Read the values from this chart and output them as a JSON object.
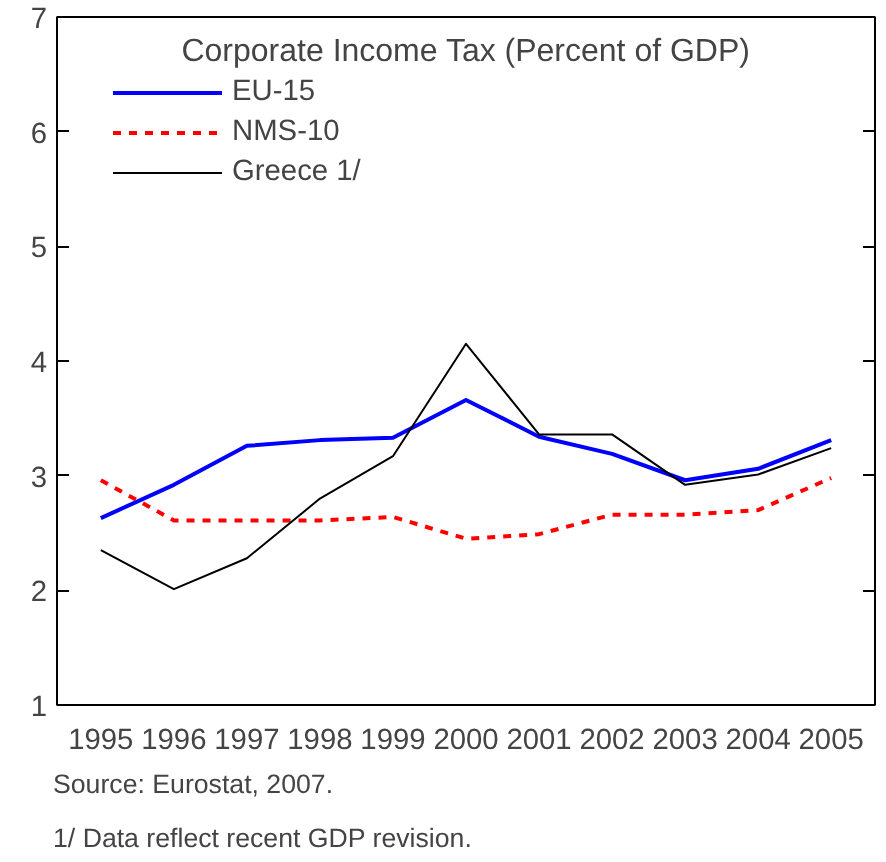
{
  "chart_data": {
    "type": "line",
    "title": "Corporate Income Tax (Percent of GDP)",
    "categories": [
      "1995",
      "1996",
      "1997",
      "1998",
      "1999",
      "2000",
      "2001",
      "2002",
      "2003",
      "2004",
      "2005"
    ],
    "series": [
      {
        "name": "EU-15",
        "color": "#0000ff",
        "line_style": "solid",
        "values": [
          2.63,
          2.92,
          3.26,
          3.31,
          3.33,
          3.66,
          3.34,
          3.19,
          2.96,
          3.06,
          3.31
        ]
      },
      {
        "name": "NMS-10",
        "color": "#ff0000",
        "line_style": "dashed",
        "values": [
          2.96,
          2.61,
          2.61,
          2.61,
          2.64,
          2.45,
          2.49,
          2.66,
          2.66,
          2.7,
          2.98
        ]
      },
      {
        "name": "Greece 1/",
        "color": "#000000",
        "line_style": "solid",
        "values": [
          2.35,
          2.01,
          2.28,
          2.8,
          3.17,
          4.15,
          3.36,
          3.36,
          2.92,
          3.01,
          3.24
        ]
      }
    ],
    "ylim": [
      1,
      7
    ],
    "yticks": [
      1,
      2,
      3,
      4,
      5,
      6,
      7
    ],
    "grid": false,
    "legend": "top left",
    "marker": "none",
    "annotations": [
      "Source: Eurostat, 2007.",
      "1/ Data reflect recent GDP revision."
    ]
  }
}
